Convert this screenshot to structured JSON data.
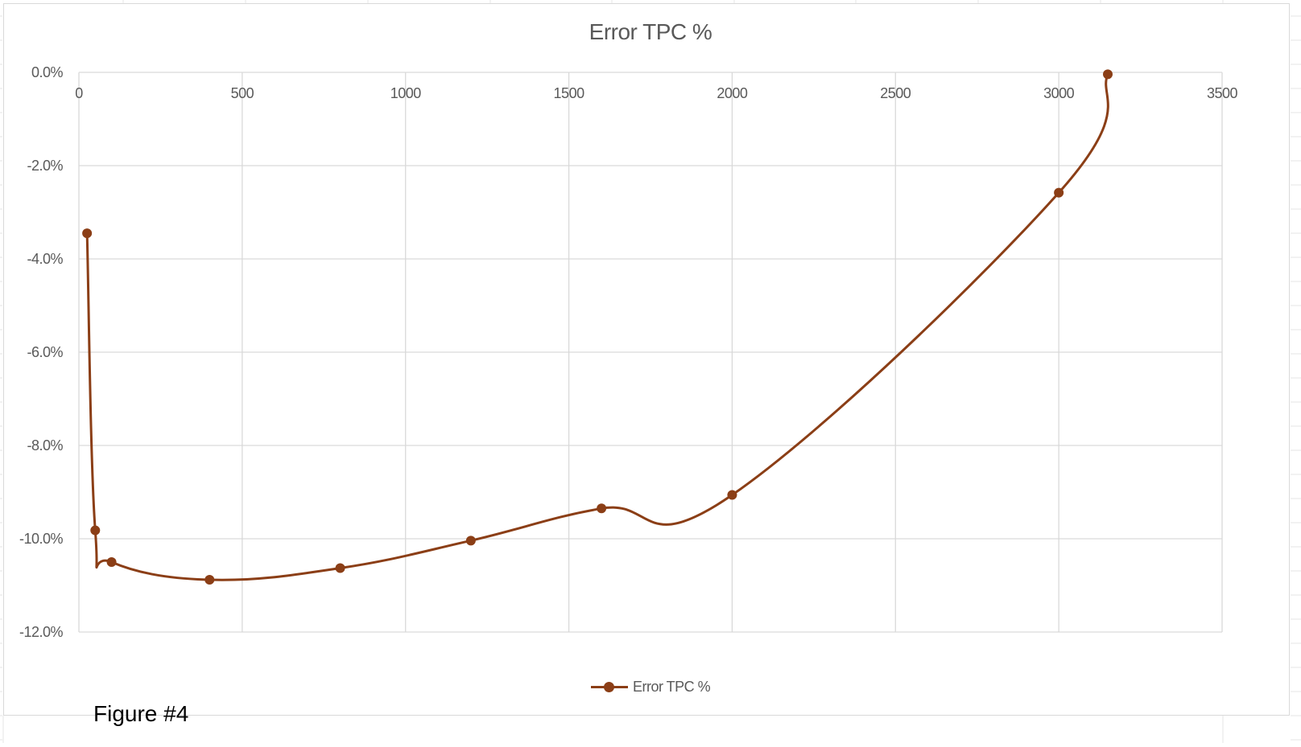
{
  "figure_caption": "Figure #4",
  "colors": {
    "series": "#8B3E16",
    "gridline": "#d9d9d9",
    "tick_text": "#595959",
    "title_text": "#595959"
  },
  "chart_data": {
    "type": "line",
    "title": "Error TPC %",
    "xlabel": "",
    "ylabel": "",
    "xlim": [
      0,
      3500
    ],
    "ylim": [
      -12.0,
      0.0
    ],
    "x_ticks": [
      0,
      500,
      1000,
      1500,
      2000,
      2500,
      3000,
      3500
    ],
    "y_ticks": [
      0.0,
      -2.0,
      -4.0,
      -6.0,
      -8.0,
      -10.0,
      -12.0
    ],
    "x_tick_labels": [
      "0",
      "500",
      "1000",
      "1500",
      "2000",
      "2500",
      "3000",
      "3500"
    ],
    "y_tick_labels": [
      "0.0%",
      "-2.0%",
      "-4.0%",
      "-6.0%",
      "-8.0%",
      "-10.0%",
      "-12.0%"
    ],
    "x_axis_position": "top",
    "smooth": true,
    "grid": true,
    "legend_position": "bottom",
    "series": [
      {
        "name": "Error TPC %",
        "marker": "circle",
        "x": [
          25,
          50,
          100,
          400,
          800,
          1200,
          1600,
          2000,
          3000,
          3150
        ],
        "y": [
          -3.45,
          -9.82,
          -10.5,
          -10.88,
          -10.63,
          -10.04,
          -9.35,
          -9.06,
          -2.58,
          -0.04
        ]
      }
    ]
  }
}
